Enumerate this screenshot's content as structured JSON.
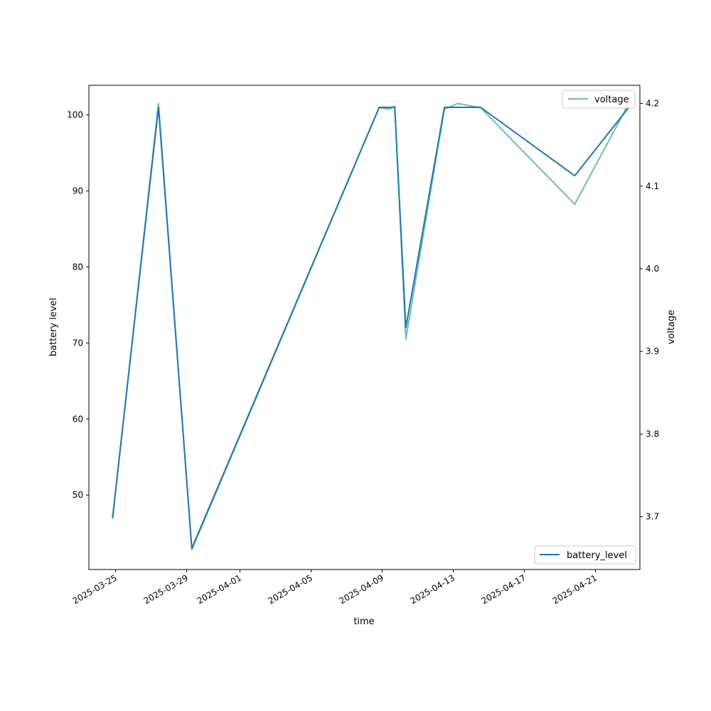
{
  "chart_data": {
    "type": "line",
    "xlabel": "time",
    "ylabel_left": "battery level",
    "ylabel_right": "voltage",
    "x_ticks": [
      "2025-03-25",
      "2025-03-29",
      "2025-04-01",
      "2025-04-05",
      "2025-04-09",
      "2025-04-13",
      "2025-04-17",
      "2025-04-21"
    ],
    "xlim": [
      "2025-03-23 12:00",
      "2025-04-23 12:00"
    ],
    "ylim_left": [
      40.2,
      103.9
    ],
    "ylim_right": [
      3.636,
      4.222
    ],
    "y_ticks_left": [
      50,
      60,
      70,
      80,
      90,
      100
    ],
    "y_ticks_right": [
      3.7,
      3.8,
      3.9,
      4.0,
      4.1,
      4.2
    ],
    "grid": false,
    "series": [
      {
        "name": "battery_level",
        "axis": "left",
        "color": "#1f77b4",
        "legend_position": "lower-right",
        "points": [
          {
            "x": "2025-03-24 20:00",
            "y": 47
          },
          {
            "x": "2025-03-27 10:00",
            "y": 101
          },
          {
            "x": "2025-03-29 07:00",
            "y": 43
          },
          {
            "x": "2025-04-08 20:00",
            "y": 101
          },
          {
            "x": "2025-04-09 17:00",
            "y": 101
          },
          {
            "x": "2025-04-10 08:00",
            "y": 72
          },
          {
            "x": "2025-04-12 12:00",
            "y": 101
          },
          {
            "x": "2025-04-14 13:00",
            "y": 101
          },
          {
            "x": "2025-04-19 20:00",
            "y": 92
          },
          {
            "x": "2025-04-22 21:00",
            "y": 101
          }
        ]
      },
      {
        "name": "voltage",
        "axis": "right",
        "color": "#66c2a5",
        "legend_position": "upper-right",
        "points": [
          {
            "x": "2025-03-24 20:00",
            "y": 3.697
          },
          {
            "x": "2025-03-27 10:00",
            "y": 4.2
          },
          {
            "x": "2025-03-29 07:00",
            "y": 3.66
          },
          {
            "x": "2025-04-08 20:00",
            "y": 4.195
          },
          {
            "x": "2025-04-09 10:00",
            "y": 4.193
          },
          {
            "x": "2025-04-09 17:00",
            "y": 4.197
          },
          {
            "x": "2025-04-10 08:00",
            "y": 3.915
          },
          {
            "x": "2025-04-12 12:00",
            "y": 4.193
          },
          {
            "x": "2025-04-13 06:00",
            "y": 4.2
          },
          {
            "x": "2025-04-14 13:00",
            "y": 4.195
          },
          {
            "x": "2025-04-19 20:00",
            "y": 4.078
          },
          {
            "x": "2025-04-22 21:00",
            "y": 4.2
          }
        ]
      }
    ]
  }
}
